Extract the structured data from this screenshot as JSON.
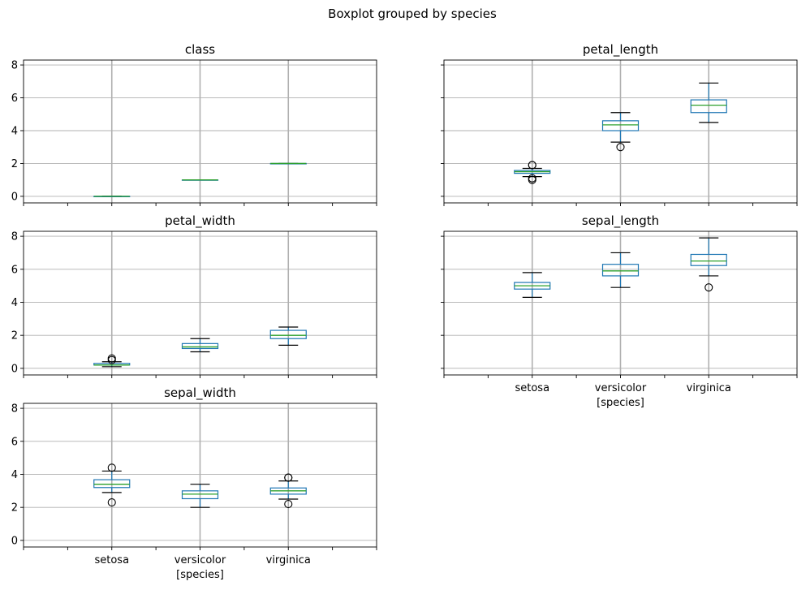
{
  "figure": {
    "suptitle": "Boxplot grouped by species"
  },
  "chart_data": [
    {
      "type": "box",
      "title": "class",
      "xlabel": "",
      "categories": [
        "setosa",
        "versicolor",
        "virginica"
      ],
      "ylim": [
        -0.4,
        8.3
      ],
      "yticks": [
        0,
        2,
        4,
        6,
        8
      ],
      "grid": true,
      "boxes": [
        {
          "category": "setosa",
          "whislo": 0,
          "q1": 0,
          "med": 0,
          "q3": 0,
          "whishi": 0,
          "fliers": []
        },
        {
          "category": "versicolor",
          "whislo": 1,
          "q1": 1,
          "med": 1,
          "q3": 1,
          "whishi": 1,
          "fliers": []
        },
        {
          "category": "virginica",
          "whislo": 2,
          "q1": 2,
          "med": 2,
          "q3": 2,
          "whishi": 2,
          "fliers": []
        }
      ]
    },
    {
      "type": "box",
      "title": "petal_length",
      "xlabel": "",
      "categories": [
        "setosa",
        "versicolor",
        "virginica"
      ],
      "ylim": [
        -0.4,
        8.3
      ],
      "yticks": [
        0,
        2,
        4,
        6,
        8
      ],
      "grid": true,
      "boxes": [
        {
          "category": "setosa",
          "whislo": 1.2,
          "q1": 1.4,
          "med": 1.5,
          "q3": 1.575,
          "whishi": 1.7,
          "fliers": [
            1.0,
            1.1,
            1.9,
            1.9
          ]
        },
        {
          "category": "versicolor",
          "whislo": 3.3,
          "q1": 4.0,
          "med": 4.35,
          "q3": 4.6,
          "whishi": 5.1,
          "fliers": [
            3.0
          ]
        },
        {
          "category": "virginica",
          "whislo": 4.5,
          "q1": 5.1,
          "med": 5.55,
          "q3": 5.875,
          "whishi": 6.9,
          "fliers": []
        }
      ]
    },
    {
      "type": "box",
      "title": "petal_width",
      "xlabel": "",
      "categories": [
        "setosa",
        "versicolor",
        "virginica"
      ],
      "ylim": [
        -0.4,
        8.3
      ],
      "yticks": [
        0,
        2,
        4,
        6,
        8
      ],
      "grid": true,
      "boxes": [
        {
          "category": "setosa",
          "whislo": 0.1,
          "q1": 0.2,
          "med": 0.2,
          "q3": 0.3,
          "whishi": 0.4,
          "fliers": [
            0.5,
            0.6
          ]
        },
        {
          "category": "versicolor",
          "whislo": 1.0,
          "q1": 1.2,
          "med": 1.3,
          "q3": 1.5,
          "whishi": 1.8,
          "fliers": []
        },
        {
          "category": "virginica",
          "whislo": 1.4,
          "q1": 1.8,
          "med": 2.0,
          "q3": 2.3,
          "whishi": 2.5,
          "fliers": []
        }
      ]
    },
    {
      "type": "box",
      "title": "sepal_length",
      "xlabel": "[species]",
      "categories": [
        "setosa",
        "versicolor",
        "virginica"
      ],
      "ylim": [
        -0.4,
        8.3
      ],
      "yticks": [
        0,
        2,
        4,
        6,
        8
      ],
      "grid": true,
      "boxes": [
        {
          "category": "setosa",
          "whislo": 4.3,
          "q1": 4.8,
          "med": 5.0,
          "q3": 5.2,
          "whishi": 5.8,
          "fliers": []
        },
        {
          "category": "versicolor",
          "whislo": 4.9,
          "q1": 5.6,
          "med": 5.9,
          "q3": 6.3,
          "whishi": 7.0,
          "fliers": []
        },
        {
          "category": "virginica",
          "whislo": 5.6,
          "q1": 6.225,
          "med": 6.5,
          "q3": 6.9,
          "whishi": 7.9,
          "fliers": [
            4.9
          ]
        }
      ]
    },
    {
      "type": "box",
      "title": "sepal_width",
      "xlabel": "[species]",
      "categories": [
        "setosa",
        "versicolor",
        "virginica"
      ],
      "ylim": [
        -0.4,
        8.3
      ],
      "yticks": [
        0,
        2,
        4,
        6,
        8
      ],
      "grid": true,
      "boxes": [
        {
          "category": "setosa",
          "whislo": 2.9,
          "q1": 3.2,
          "med": 3.4,
          "q3": 3.675,
          "whishi": 4.2,
          "fliers": [
            4.4,
            2.3
          ]
        },
        {
          "category": "versicolor",
          "whislo": 2.0,
          "q1": 2.525,
          "med": 2.8,
          "q3": 3.0,
          "whishi": 3.4,
          "fliers": []
        },
        {
          "category": "virginica",
          "whislo": 2.5,
          "q1": 2.8,
          "med": 3.0,
          "q3": 3.175,
          "whishi": 3.6,
          "fliers": [
            3.8,
            3.8,
            2.2
          ]
        }
      ]
    }
  ],
  "colors": {
    "box": "#1f77b4",
    "median": "#2ca02c",
    "grid": "#b0b0b0",
    "axis": "#000000"
  }
}
